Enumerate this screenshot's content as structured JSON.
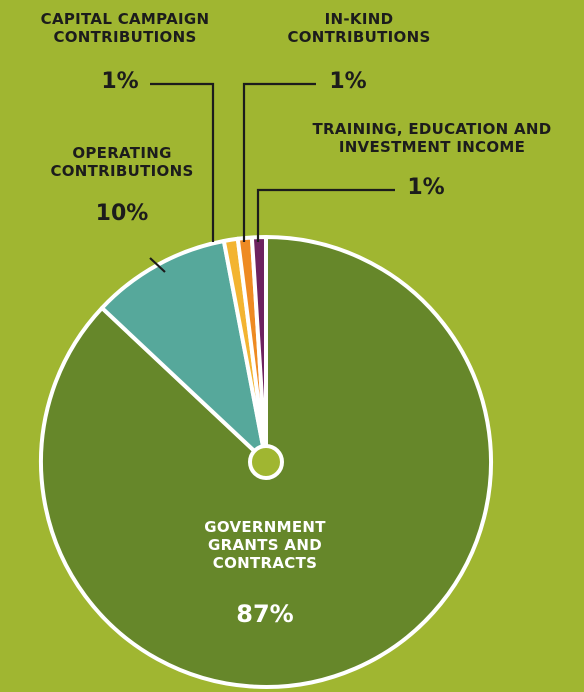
{
  "chart_data": {
    "type": "pie",
    "title": "",
    "slices": [
      {
        "label": "GOVERNMENT GRANTS AND CONTRACTS",
        "value": 87,
        "display": "87%",
        "color": "#66872a"
      },
      {
        "label": "OPERATING CONTRIBUTIONS",
        "value": 10,
        "display": "10%",
        "color": "#56a89b"
      },
      {
        "label": "CAPITAL CAMPAIGN CONTRIBUTIONS",
        "value": 1,
        "display": "1%",
        "color": "#f3b431"
      },
      {
        "label": "IN-KIND CONTRIBUTIONS",
        "value": 1,
        "display": "1%",
        "color": "#ee8a23"
      },
      {
        "label": "TRAINING, EDUCATION AND INVESTMENT INCOME",
        "value": 1,
        "display": "1%",
        "color": "#6d2260"
      }
    ],
    "center_dot_color": "#a0b631",
    "background_color": "#a0b631",
    "outline_color": "#ffffff"
  }
}
